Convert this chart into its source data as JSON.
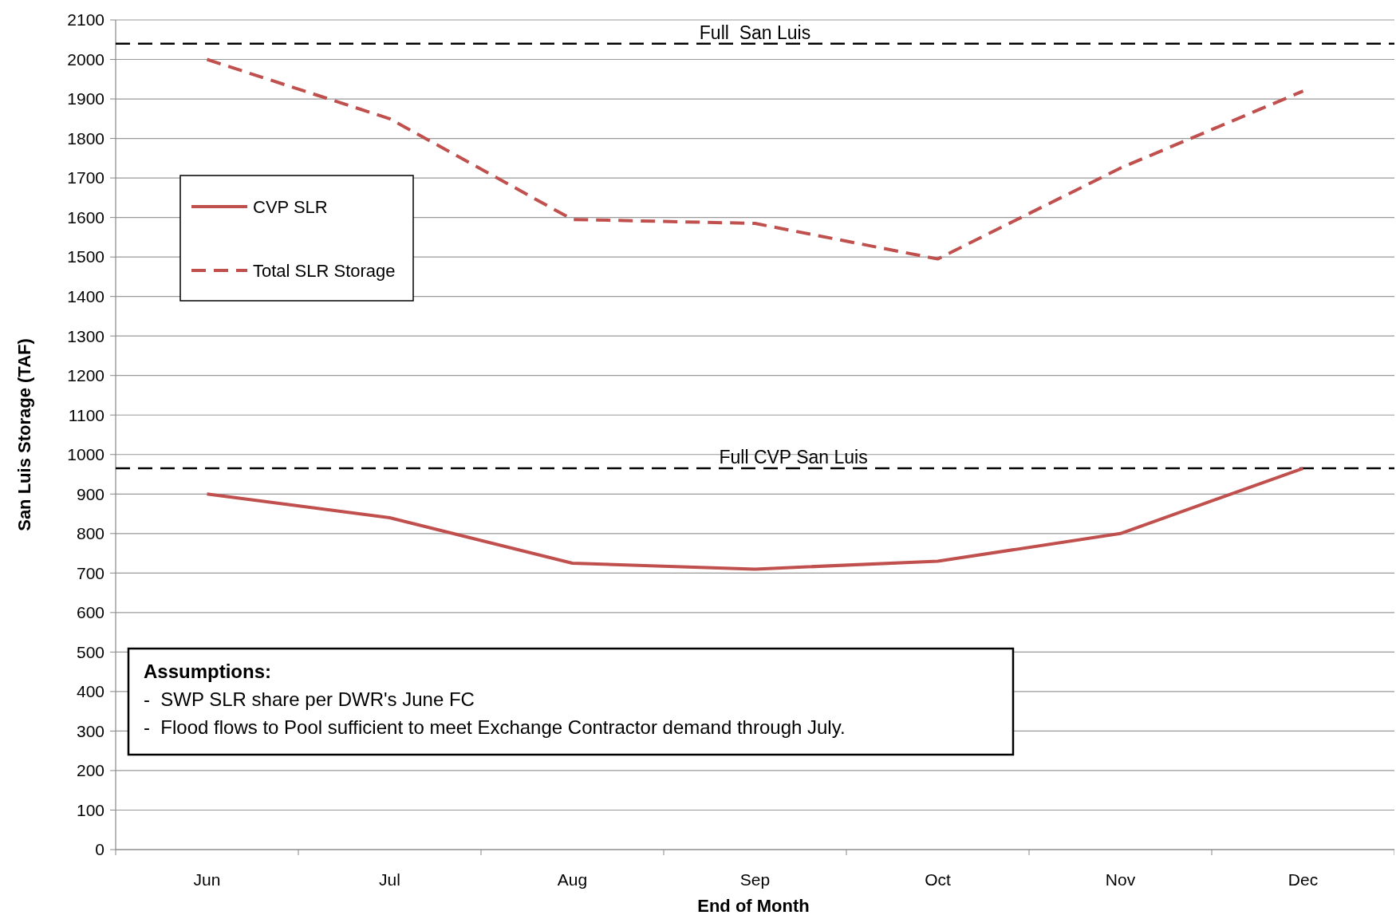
{
  "chart_data": {
    "type": "line",
    "xlabel": "End of Month",
    "ylabel": "San Luis Storage (TAF)",
    "categories": [
      "Jun",
      "Jul",
      "Aug",
      "Sep",
      "Oct",
      "Nov",
      "Dec"
    ],
    "series": [
      {
        "name": "CVP SLR",
        "color": "#c0504d",
        "line_style": "solid",
        "values": [
          900,
          840,
          725,
          710,
          730,
          800,
          965
        ]
      },
      {
        "name": "Total SLR Storage",
        "color": "#c0504d",
        "line_style": "dashed",
        "values": [
          2000,
          1850,
          1595,
          1585,
          1495,
          1725,
          1920
        ]
      }
    ],
    "ylim": [
      0,
      2100
    ],
    "yticks": [
      0,
      100,
      200,
      300,
      400,
      500,
      600,
      700,
      800,
      900,
      1000,
      1100,
      1200,
      1300,
      1400,
      1500,
      1600,
      1700,
      1800,
      1900,
      2000,
      2100
    ],
    "grid": "y",
    "legend": "top left",
    "ref_lines": [
      {
        "axis": "y",
        "value": 2040,
        "label": "Full  San Luis",
        "color": "#000000",
        "line_style": "dashed"
      },
      {
        "axis": "y",
        "value": 965,
        "label": "Full CVP San Luis",
        "color": "#000000",
        "line_style": "dashed"
      }
    ],
    "annotations": [
      "Assumptions:",
      "-  SWP SLR share per DWR's June FC",
      "-  Flood flows to Pool sufficient to meet Exchange Contractor demand through July."
    ]
  }
}
